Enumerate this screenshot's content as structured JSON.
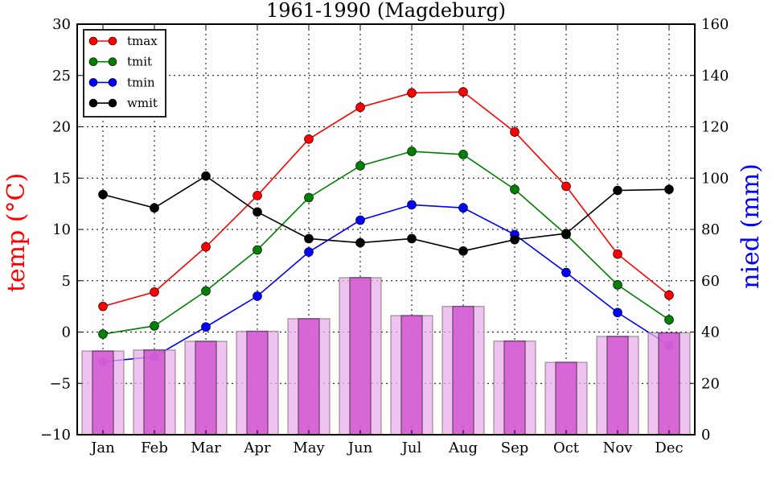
{
  "chart_data": {
    "type": "line+bar",
    "title": "1961-1990 (Magdeburg)",
    "categories": [
      "Jan",
      "Feb",
      "Mar",
      "Apr",
      "May",
      "Jun",
      "Jul",
      "Aug",
      "Sep",
      "Oct",
      "Nov",
      "Dec"
    ],
    "left_axis": {
      "label": "temp ($^\\circ$C)",
      "label_display": "temp (°C)",
      "color": "#ff0000",
      "ylim": [
        -10,
        30
      ],
      "ticks": [
        -10,
        -5,
        0,
        5,
        10,
        15,
        20,
        25,
        30
      ],
      "tick_labels": [
        "−10",
        "−5",
        "0",
        "5",
        "10",
        "15",
        "20",
        "25",
        "30"
      ]
    },
    "right_axis": {
      "label": "nied (mm)",
      "color": "#0000ff",
      "ylim": [
        0,
        160
      ],
      "ticks": [
        0,
        20,
        40,
        60,
        80,
        100,
        120,
        140,
        160
      ],
      "tick_labels": [
        "0",
        "20",
        "40",
        "60",
        "80",
        "100",
        "120",
        "140",
        "160"
      ]
    },
    "grid": true,
    "legend_position": "top-left",
    "series": [
      {
        "name": "tmax",
        "axis": "left",
        "kind": "line",
        "color": "#ff0000",
        "values": [
          2.5,
          3.9,
          8.3,
          13.3,
          18.8,
          21.9,
          23.3,
          23.4,
          19.5,
          14.2,
          7.6,
          3.6
        ]
      },
      {
        "name": "tmit",
        "axis": "left",
        "kind": "line",
        "color": "#008000",
        "values": [
          -0.2,
          0.6,
          4.0,
          8.0,
          13.1,
          16.2,
          17.6,
          17.3,
          13.9,
          9.5,
          4.6,
          1.2
        ]
      },
      {
        "name": "tmin",
        "axis": "left",
        "kind": "line",
        "color": "#0000ff",
        "values": [
          -2.9,
          -2.4,
          0.5,
          3.5,
          7.8,
          10.9,
          12.4,
          12.1,
          9.5,
          5.8,
          1.9,
          -1.3
        ]
      },
      {
        "name": "wmit",
        "axis": "left",
        "kind": "line",
        "color": "#000000",
        "values": [
          13.4,
          12.1,
          15.2,
          11.7,
          9.1,
          8.7,
          9.1,
          7.9,
          9.0,
          9.6,
          13.8,
          13.9
        ]
      },
      {
        "name": "nied",
        "axis": "right",
        "kind": "bar",
        "color_wide": "#eaaeea",
        "color_narrow": "#d257d2",
        "values": [
          32.6,
          33.0,
          36.4,
          40.3,
          45.2,
          61.2,
          46.4,
          50.0,
          36.5,
          28.2,
          38.3,
          39.7
        ]
      }
    ]
  }
}
